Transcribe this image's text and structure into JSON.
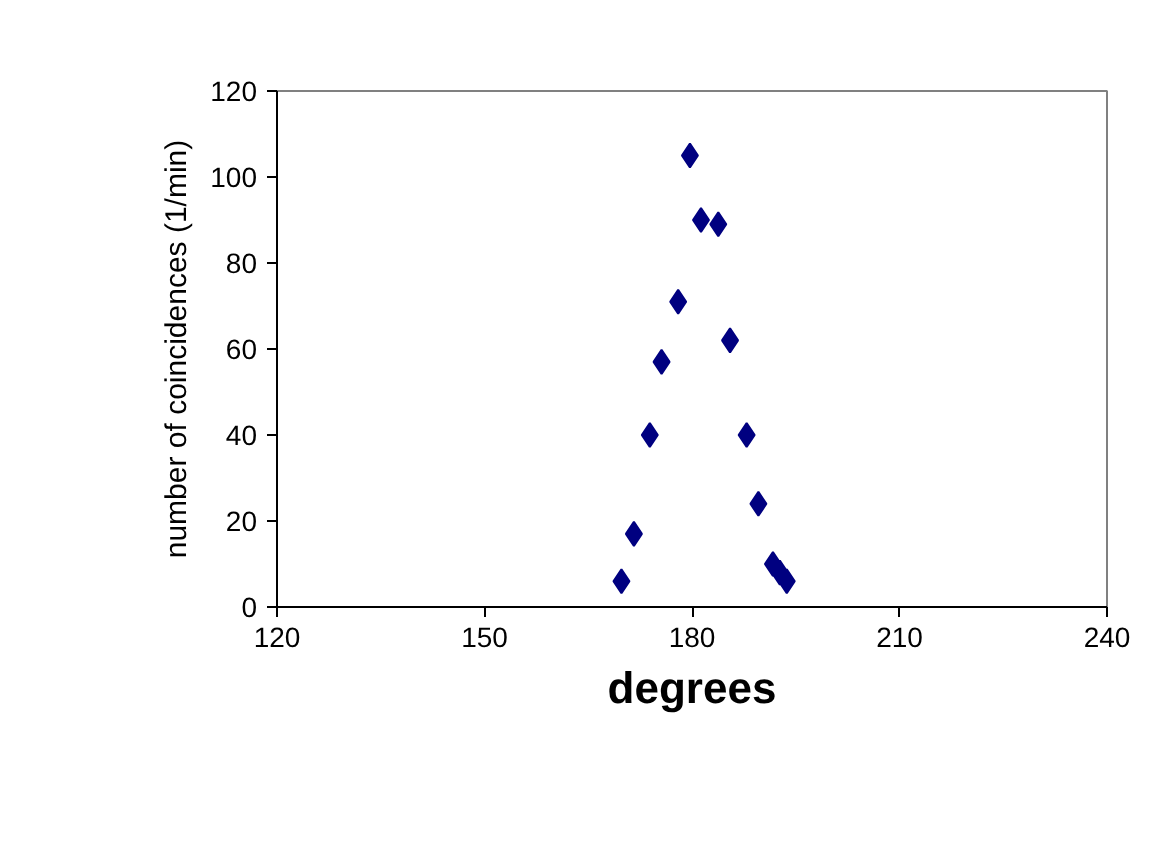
{
  "chart_data": {
    "type": "scatter",
    "xlabel": "degrees",
    "ylabel": "number of coincidences (1/min)",
    "x": [
      169.8,
      171.6,
      173.9,
      175.6,
      178.0,
      179.7,
      181.3,
      183.8,
      185.5,
      187.9,
      189.6,
      191.7,
      192.7,
      193.7
    ],
    "values": [
      6,
      17,
      40,
      57,
      71,
      105,
      90,
      89,
      62,
      40,
      24,
      10,
      8,
      6
    ],
    "color": "#000080",
    "marker": "diamond",
    "xlim": [
      120,
      240
    ],
    "ylim": [
      0,
      120
    ],
    "xticks": [
      120,
      150,
      180,
      210,
      240
    ],
    "yticks": [
      0,
      20,
      40,
      60,
      80,
      100,
      120
    ],
    "grid": false
  }
}
